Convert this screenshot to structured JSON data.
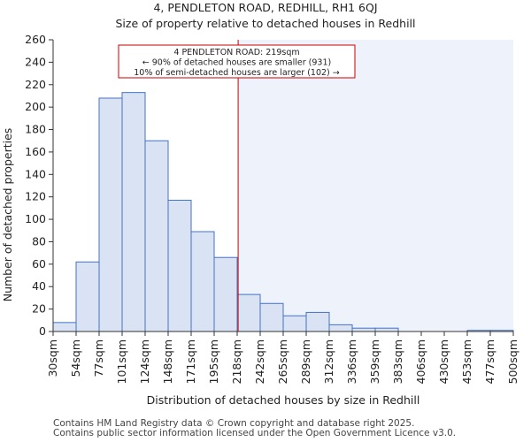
{
  "chart_data": {
    "type": "bar",
    "title": "4, PENDLETON ROAD, REDHILL, RH1 6QJ",
    "subtitle": "Size of property relative to detached houses in Redhill",
    "xlabel": "Distribution of detached houses by size in Redhill",
    "ylabel": "Number of detached properties",
    "ylim": [
      0,
      260
    ],
    "yticks": [
      0,
      20,
      40,
      60,
      80,
      100,
      120,
      140,
      160,
      180,
      200,
      220,
      240,
      260
    ],
    "bin_edges": [
      30,
      54,
      77,
      101,
      124,
      148,
      171,
      195,
      218,
      242,
      265,
      289,
      312,
      336,
      359,
      383,
      406,
      430,
      453,
      477,
      500
    ],
    "tick_labels": [
      "30sqm",
      "54sqm",
      "77sqm",
      "101sqm",
      "124sqm",
      "148sqm",
      "171sqm",
      "195sqm",
      "218sqm",
      "242sqm",
      "265sqm",
      "289sqm",
      "312sqm",
      "336sqm",
      "359sqm",
      "383sqm",
      "406sqm",
      "430sqm",
      "453sqm",
      "477sqm",
      "500sqm"
    ],
    "values": [
      8,
      62,
      208,
      213,
      170,
      117,
      89,
      66,
      33,
      25,
      14,
      17,
      6,
      3,
      3,
      0,
      0,
      0,
      1,
      1
    ],
    "marker_value": 219,
    "annotation": [
      "4 PENDLETON ROAD: 219sqm",
      "← 90% of detached houses are smaller (931)",
      "10% of semi-detached houses are larger (102) →"
    ],
    "colors": {
      "bar_fill": "#dae3f3",
      "bar_stroke": "#4472c4",
      "highlight_bg": "#eef2fb",
      "marker": "#cc0000"
    }
  },
  "footer": {
    "line1": "Contains HM Land Registry data © Crown copyright and database right 2025.",
    "line2": "Contains public sector information licensed under the Open Government Licence v3.0."
  }
}
